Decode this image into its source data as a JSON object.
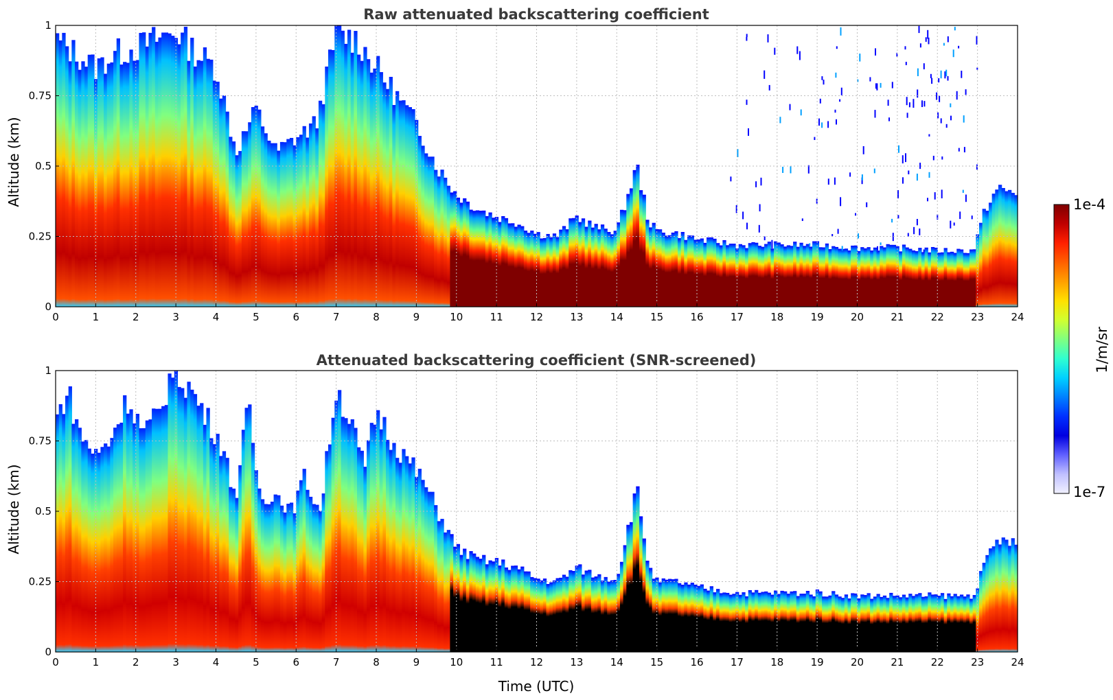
{
  "chart_data": [
    {
      "type": "heatmap",
      "id": "raw",
      "title": "Raw attenuated backscattering coefficient",
      "xlabel": "",
      "ylabel": "Altitude (km)",
      "xlim": [
        0,
        24
      ],
      "ylim": [
        0,
        1
      ],
      "xticks": [
        "0",
        "1",
        "2",
        "3",
        "4",
        "5",
        "6",
        "7",
        "8",
        "9",
        "10",
        "11",
        "12",
        "13",
        "14",
        "15",
        "16",
        "17",
        "18",
        "19",
        "20",
        "21",
        "22",
        "23",
        "24"
      ],
      "yticks": [
        "0",
        "0.25",
        "0.5",
        "0.75",
        "1"
      ],
      "grid": true,
      "screened": false,
      "layer_top_km": [
        [
          0,
          0.95
        ],
        [
          0.5,
          0.9
        ],
        [
          1,
          0.85
        ],
        [
          1.5,
          0.9
        ],
        [
          2,
          0.92
        ],
        [
          2.5,
          0.95
        ],
        [
          3,
          0.98
        ],
        [
          3.5,
          0.9
        ],
        [
          4,
          0.85
        ],
        [
          4.5,
          0.55
        ],
        [
          5,
          0.7
        ],
        [
          5.5,
          0.55
        ],
        [
          6,
          0.6
        ],
        [
          6.5,
          0.65
        ],
        [
          7,
          0.97
        ],
        [
          7.5,
          0.95
        ],
        [
          8,
          0.85
        ],
        [
          8.5,
          0.75
        ],
        [
          9,
          0.65
        ],
        [
          9.5,
          0.5
        ],
        [
          10,
          0.4
        ],
        [
          10.5,
          0.35
        ],
        [
          11,
          0.32
        ],
        [
          11.5,
          0.3
        ],
        [
          12,
          0.26
        ],
        [
          12.5,
          0.25
        ],
        [
          13,
          0.32
        ],
        [
          13.5,
          0.28
        ],
        [
          14,
          0.27
        ],
        [
          14.5,
          0.5
        ],
        [
          14.8,
          0.3
        ],
        [
          15,
          0.27
        ],
        [
          15.5,
          0.26
        ],
        [
          16,
          0.24
        ],
        [
          17,
          0.22
        ],
        [
          18,
          0.22
        ],
        [
          19,
          0.22
        ],
        [
          20,
          0.21
        ],
        [
          21,
          0.21
        ],
        [
          22,
          0.2
        ],
        [
          22.9,
          0.2
        ],
        [
          23.2,
          0.35
        ],
        [
          23.5,
          0.42
        ],
        [
          24,
          0.4
        ]
      ]
    },
    {
      "type": "heatmap",
      "id": "snr",
      "title": "Attenuated backscattering coefficient (SNR-screened)",
      "xlabel": "Time (UTC)",
      "ylabel": "Altitude (km)",
      "xlim": [
        0,
        24
      ],
      "ylim": [
        0,
        1
      ],
      "xticks": [
        "0",
        "1",
        "2",
        "3",
        "4",
        "5",
        "6",
        "7",
        "8",
        "9",
        "10",
        "11",
        "12",
        "13",
        "14",
        "15",
        "16",
        "17",
        "18",
        "19",
        "20",
        "21",
        "22",
        "23",
        "24"
      ],
      "yticks": [
        "0",
        "0.25",
        "0.5",
        "0.75",
        "1"
      ],
      "grid": true,
      "screened": true,
      "layer_top_km": [
        [
          0,
          0.82
        ],
        [
          0.3,
          0.93
        ],
        [
          0.6,
          0.78
        ],
        [
          1,
          0.7
        ],
        [
          1.3,
          0.74
        ],
        [
          1.8,
          0.9
        ],
        [
          2.2,
          0.78
        ],
        [
          2.6,
          0.85
        ],
        [
          2.9,
          1.0
        ],
        [
          3.3,
          0.95
        ],
        [
          3.7,
          0.85
        ],
        [
          4.1,
          0.75
        ],
        [
          4.5,
          0.55
        ],
        [
          4.8,
          0.88
        ],
        [
          5.1,
          0.55
        ],
        [
          5.5,
          0.56
        ],
        [
          5.9,
          0.5
        ],
        [
          6.2,
          0.62
        ],
        [
          6.6,
          0.5
        ],
        [
          7.0,
          0.94
        ],
        [
          7.4,
          0.8
        ],
        [
          7.7,
          0.65
        ],
        [
          8.0,
          0.86
        ],
        [
          8.4,
          0.75
        ],
        [
          8.8,
          0.68
        ],
        [
          9.2,
          0.6
        ],
        [
          9.6,
          0.48
        ],
        [
          10,
          0.37
        ],
        [
          10.5,
          0.33
        ],
        [
          11,
          0.32
        ],
        [
          11.5,
          0.3
        ],
        [
          12,
          0.26
        ],
        [
          12.5,
          0.25
        ],
        [
          13,
          0.3
        ],
        [
          13.5,
          0.27
        ],
        [
          14,
          0.26
        ],
        [
          14.5,
          0.58
        ],
        [
          14.8,
          0.3
        ],
        [
          15,
          0.25
        ],
        [
          15.5,
          0.25
        ],
        [
          16,
          0.23
        ],
        [
          17,
          0.21
        ],
        [
          18,
          0.21
        ],
        [
          19,
          0.21
        ],
        [
          20,
          0.2
        ],
        [
          21,
          0.2
        ],
        [
          22,
          0.2
        ],
        [
          22.9,
          0.2
        ],
        [
          23.2,
          0.32
        ],
        [
          23.5,
          0.4
        ],
        [
          24,
          0.38
        ]
      ]
    }
  ],
  "colorbar": {
    "label": "1/m/sr",
    "max_label": "1e-4",
    "min_label": "1e-7",
    "colormap": [
      "#7f0000",
      "#c00000",
      "#ff2000",
      "#ff6000",
      "#ffa000",
      "#ffe000",
      "#d0ff30",
      "#80ff80",
      "#30ffd0",
      "#00d0ff",
      "#0080ff",
      "#0030ff",
      "#0000e0",
      "#6060ff",
      "#c0c0ff",
      "#f0f0ff"
    ]
  }
}
